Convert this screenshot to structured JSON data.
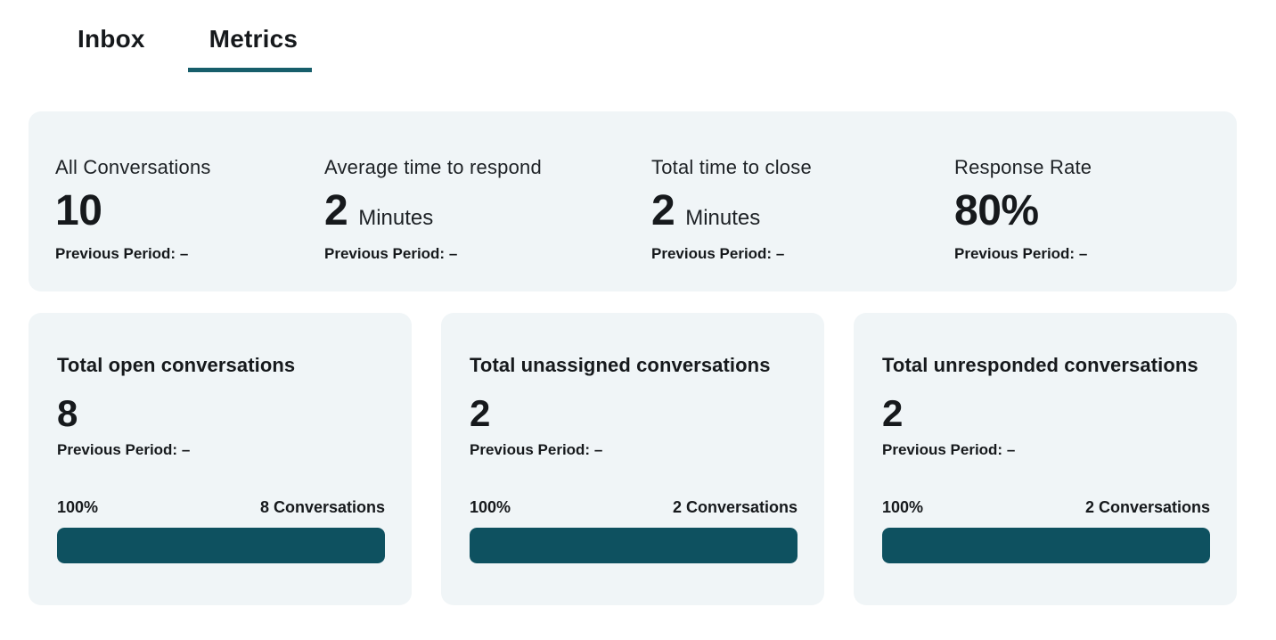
{
  "colors": {
    "accent": "#0E5160",
    "tab_underline": "#175E6B",
    "card_background": "#F0F5F7",
    "text": "#16191C"
  },
  "tabs": [
    {
      "label": "Inbox",
      "active": false
    },
    {
      "label": "Metrics",
      "active": true
    }
  ],
  "summary": {
    "stats": [
      {
        "label": "All Conversations",
        "value": "10",
        "unit": "",
        "previous": "Previous Period: –"
      },
      {
        "label": "Average time to respond",
        "value": "2",
        "unit": "Minutes",
        "previous": "Previous Period: –"
      },
      {
        "label": "Total time to close",
        "value": "2",
        "unit": "Minutes",
        "previous": "Previous Period: –"
      },
      {
        "label": "Response Rate",
        "value": "80%",
        "unit": "",
        "previous": "Previous Period: –"
      }
    ]
  },
  "cards": [
    {
      "title": "Total open conversations",
      "value": "8",
      "previous": "Previous Period: –",
      "percent_label": "100%",
      "count_label": "8 Conversations",
      "bar_width": "100%"
    },
    {
      "title": "Total unassigned conversations",
      "value": "2",
      "previous": "Previous Period: –",
      "percent_label": "100%",
      "count_label": "2 Conversations",
      "bar_width": "100%"
    },
    {
      "title": "Total unresponded conversations",
      "value": "2",
      "previous": "Previous Period: –",
      "percent_label": "100%",
      "count_label": "2 Conversations",
      "bar_width": "100%"
    }
  ]
}
